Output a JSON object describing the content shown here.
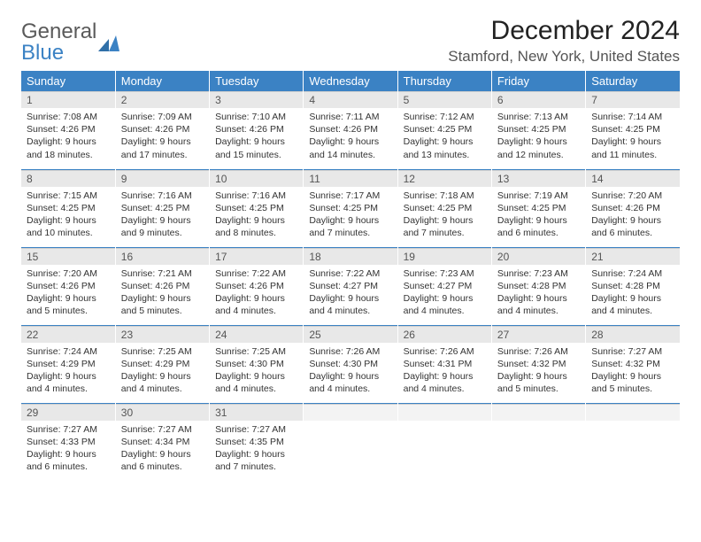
{
  "logo": {
    "top": "General",
    "bottom": "Blue"
  },
  "title": "December 2024",
  "location": "Stamford, New York, United States",
  "colors": {
    "header_bg": "#3b82c4",
    "header_fg": "#ffffff",
    "daynum_bg": "#e8e8e8",
    "row_border": "#3b82c4",
    "logo_accent": "#3b82c4"
  },
  "typography": {
    "title_fontsize": 30,
    "location_fontsize": 17,
    "dayheader_fontsize": 13,
    "cell_fontsize": 10.5
  },
  "layout": {
    "columns": 7,
    "rows": 5
  },
  "day_headers": [
    "Sunday",
    "Monday",
    "Tuesday",
    "Wednesday",
    "Thursday",
    "Friday",
    "Saturday"
  ],
  "days": [
    {
      "n": "1",
      "sunrise": "7:08 AM",
      "sunset": "4:26 PM",
      "daylight": "9 hours and 18 minutes."
    },
    {
      "n": "2",
      "sunrise": "7:09 AM",
      "sunset": "4:26 PM",
      "daylight": "9 hours and 17 minutes."
    },
    {
      "n": "3",
      "sunrise": "7:10 AM",
      "sunset": "4:26 PM",
      "daylight": "9 hours and 15 minutes."
    },
    {
      "n": "4",
      "sunrise": "7:11 AM",
      "sunset": "4:26 PM",
      "daylight": "9 hours and 14 minutes."
    },
    {
      "n": "5",
      "sunrise": "7:12 AM",
      "sunset": "4:25 PM",
      "daylight": "9 hours and 13 minutes."
    },
    {
      "n": "6",
      "sunrise": "7:13 AM",
      "sunset": "4:25 PM",
      "daylight": "9 hours and 12 minutes."
    },
    {
      "n": "7",
      "sunrise": "7:14 AM",
      "sunset": "4:25 PM",
      "daylight": "9 hours and 11 minutes."
    },
    {
      "n": "8",
      "sunrise": "7:15 AM",
      "sunset": "4:25 PM",
      "daylight": "9 hours and 10 minutes."
    },
    {
      "n": "9",
      "sunrise": "7:16 AM",
      "sunset": "4:25 PM",
      "daylight": "9 hours and 9 minutes."
    },
    {
      "n": "10",
      "sunrise": "7:16 AM",
      "sunset": "4:25 PM",
      "daylight": "9 hours and 8 minutes."
    },
    {
      "n": "11",
      "sunrise": "7:17 AM",
      "sunset": "4:25 PM",
      "daylight": "9 hours and 7 minutes."
    },
    {
      "n": "12",
      "sunrise": "7:18 AM",
      "sunset": "4:25 PM",
      "daylight": "9 hours and 7 minutes."
    },
    {
      "n": "13",
      "sunrise": "7:19 AM",
      "sunset": "4:25 PM",
      "daylight": "9 hours and 6 minutes."
    },
    {
      "n": "14",
      "sunrise": "7:20 AM",
      "sunset": "4:26 PM",
      "daylight": "9 hours and 6 minutes."
    },
    {
      "n": "15",
      "sunrise": "7:20 AM",
      "sunset": "4:26 PM",
      "daylight": "9 hours and 5 minutes."
    },
    {
      "n": "16",
      "sunrise": "7:21 AM",
      "sunset": "4:26 PM",
      "daylight": "9 hours and 5 minutes."
    },
    {
      "n": "17",
      "sunrise": "7:22 AM",
      "sunset": "4:26 PM",
      "daylight": "9 hours and 4 minutes."
    },
    {
      "n": "18",
      "sunrise": "7:22 AM",
      "sunset": "4:27 PM",
      "daylight": "9 hours and 4 minutes."
    },
    {
      "n": "19",
      "sunrise": "7:23 AM",
      "sunset": "4:27 PM",
      "daylight": "9 hours and 4 minutes."
    },
    {
      "n": "20",
      "sunrise": "7:23 AM",
      "sunset": "4:28 PM",
      "daylight": "9 hours and 4 minutes."
    },
    {
      "n": "21",
      "sunrise": "7:24 AM",
      "sunset": "4:28 PM",
      "daylight": "9 hours and 4 minutes."
    },
    {
      "n": "22",
      "sunrise": "7:24 AM",
      "sunset": "4:29 PM",
      "daylight": "9 hours and 4 minutes."
    },
    {
      "n": "23",
      "sunrise": "7:25 AM",
      "sunset": "4:29 PM",
      "daylight": "9 hours and 4 minutes."
    },
    {
      "n": "24",
      "sunrise": "7:25 AM",
      "sunset": "4:30 PM",
      "daylight": "9 hours and 4 minutes."
    },
    {
      "n": "25",
      "sunrise": "7:26 AM",
      "sunset": "4:30 PM",
      "daylight": "9 hours and 4 minutes."
    },
    {
      "n": "26",
      "sunrise": "7:26 AM",
      "sunset": "4:31 PM",
      "daylight": "9 hours and 4 minutes."
    },
    {
      "n": "27",
      "sunrise": "7:26 AM",
      "sunset": "4:32 PM",
      "daylight": "9 hours and 5 minutes."
    },
    {
      "n": "28",
      "sunrise": "7:27 AM",
      "sunset": "4:32 PM",
      "daylight": "9 hours and 5 minutes."
    },
    {
      "n": "29",
      "sunrise": "7:27 AM",
      "sunset": "4:33 PM",
      "daylight": "9 hours and 6 minutes."
    },
    {
      "n": "30",
      "sunrise": "7:27 AM",
      "sunset": "4:34 PM",
      "daylight": "9 hours and 6 minutes."
    },
    {
      "n": "31",
      "sunrise": "7:27 AM",
      "sunset": "4:35 PM",
      "daylight": "9 hours and 7 minutes."
    }
  ],
  "labels": {
    "sunrise": "Sunrise: ",
    "sunset": "Sunset: ",
    "daylight": "Daylight: "
  }
}
